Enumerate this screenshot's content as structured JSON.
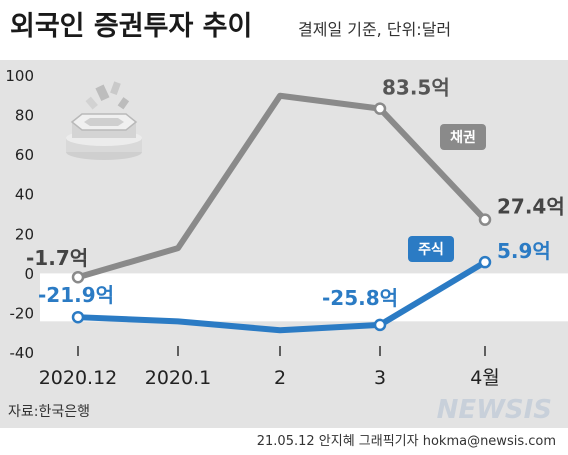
{
  "header": {
    "title": "외국인 증권투자 추이",
    "subtitle": "결제일 기준, 단위:달러"
  },
  "footer": {
    "source": "자료:한국은행",
    "credit": "21.05.12 안지혜 그래픽기자 hokma@newsis.com",
    "watermark": "NEWSIS"
  },
  "colors": {
    "bond": "#8a8a8a",
    "stock": "#2b7bc4",
    "text": "#222222",
    "band": "#e3e3e3",
    "background": "#ffffff"
  },
  "icon": "coin-stack-icon",
  "chart_data": {
    "type": "line",
    "categories": [
      "2020.12",
      "2020.1",
      "2",
      "3",
      "4월"
    ],
    "ylim": [
      -40,
      100
    ],
    "yticks": [
      100,
      80,
      60,
      40,
      20,
      0,
      -20,
      -40
    ],
    "grid": false,
    "series": [
      {
        "name": "채권",
        "color": "#8a8a8a",
        "values": [
          -1.7,
          13,
          90,
          83.5,
          27.4
        ],
        "labels": [
          "-1.7억",
          "",
          "",
          "83.5억",
          "27.4억"
        ]
      },
      {
        "name": "주식",
        "color": "#2b7bc4",
        "values": [
          -21.9,
          -24,
          -28.5,
          -25.8,
          5.9
        ],
        "labels": [
          "-21.9억",
          "",
          "",
          "-25.8억",
          "5.9억"
        ]
      }
    ]
  }
}
